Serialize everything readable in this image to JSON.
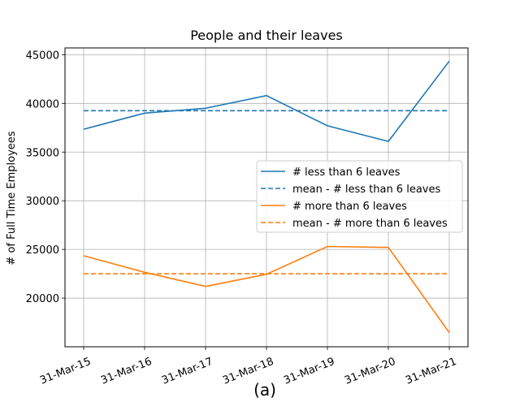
{
  "chart_data": {
    "type": "line",
    "title": "People and their leaves",
    "xlabel": "",
    "ylabel": "# of Full Time Employees",
    "categories": [
      "31-Mar-15",
      "31-Mar-16",
      "31-Mar-17",
      "31-Mar-18",
      "31-Mar-19",
      "31-Mar-20",
      "31-Mar-21"
    ],
    "ylim": [
      15000,
      45700
    ],
    "yticks": [
      20000,
      25000,
      30000,
      35000,
      40000,
      45000
    ],
    "ytick_labels": [
      "20000",
      "25000",
      "30000",
      "35000",
      "40000",
      "45000"
    ],
    "grid": true,
    "legend_position": "center-right",
    "series": [
      {
        "name": "# less than 6 leaves",
        "style": "solid",
        "color": "#1f77b4",
        "values": [
          37350,
          39000,
          39500,
          40800,
          37700,
          36100,
          44350
        ]
      },
      {
        "name": "mean - # less than 6 leaves",
        "style": "dashed",
        "color": "#1f77b4",
        "values": [
          39250,
          39250,
          39250,
          39250,
          39250,
          39250,
          39250
        ]
      },
      {
        "name": "# more than 6 leaves",
        "style": "solid",
        "color": "#ff7f0e",
        "values": [
          24350,
          22650,
          21200,
          22450,
          25300,
          25200,
          16450
        ]
      },
      {
        "name": "mean - # more than 6 leaves",
        "style": "dashed",
        "color": "#ff7f0e",
        "values": [
          22500,
          22500,
          22500,
          22500,
          22500,
          22500,
          22500
        ]
      }
    ]
  },
  "caption": "(a)"
}
